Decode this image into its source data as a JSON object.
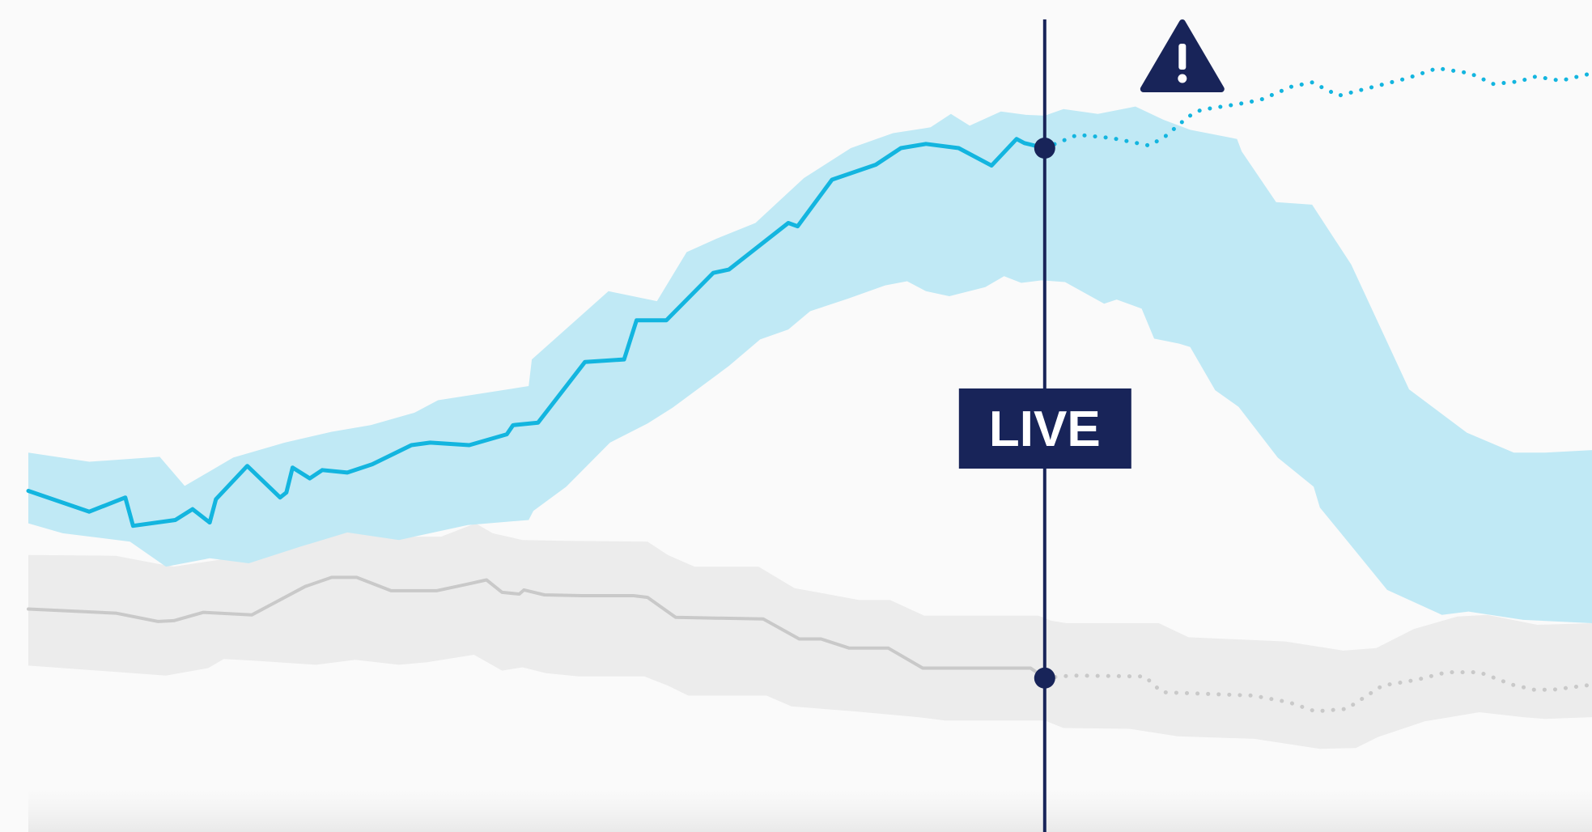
{
  "colors": {
    "accent_bar": "#005ebd",
    "primary_line": "#13b5df",
    "primary_band": "#c0e9f5",
    "secondary_line": "#c9c9c9",
    "secondary_band": "#ececec",
    "marker": "#182459",
    "background": "#fafafa"
  },
  "icons": {
    "warning": "warning-triangle-icon"
  },
  "labels": {
    "live": "LIVE"
  },
  "chart_data": {
    "type": "line",
    "title": "",
    "xlabel": "",
    "ylabel": "",
    "grid": false,
    "axes_visible": false,
    "legend": "none",
    "xlim": [
      0,
      100
    ],
    "ylim": [
      0,
      100
    ],
    "live_x": 65,
    "live_label": "LIVE",
    "warning_x": 73.8,
    "series": [
      {
        "key": "primary",
        "color": "#13b5df",
        "band_color": "#c0e9f5",
        "actual": [
          [
            0,
            41
          ],
          [
            3.9,
            38.5
          ],
          [
            6.2,
            40.2
          ],
          [
            6.7,
            36.8
          ],
          [
            9.4,
            37.5
          ],
          [
            10.5,
            38.8
          ],
          [
            11.6,
            37.2
          ],
          [
            12,
            40
          ],
          [
            14,
            44
          ],
          [
            16.1,
            40.2
          ],
          [
            16.5,
            40.8
          ],
          [
            16.9,
            43.8
          ],
          [
            18,
            42.5
          ],
          [
            18.8,
            43.5
          ],
          [
            20.4,
            43.2
          ],
          [
            22,
            44.2
          ],
          [
            24.5,
            46.5
          ],
          [
            25.7,
            46.8
          ],
          [
            28.2,
            46.5
          ],
          [
            30.6,
            47.8
          ],
          [
            31,
            48.9
          ],
          [
            32.6,
            49.2
          ],
          [
            35.6,
            56.5
          ],
          [
            38.1,
            56.8
          ],
          [
            38.9,
            61.5
          ],
          [
            40.8,
            61.5
          ],
          [
            43.8,
            67.2
          ],
          [
            44.8,
            67.6
          ],
          [
            48.6,
            73.2
          ],
          [
            49.2,
            72.8
          ],
          [
            51.4,
            78.4
          ],
          [
            54.2,
            80.2
          ],
          [
            55.8,
            82.2
          ],
          [
            57.4,
            82.7
          ],
          [
            59.5,
            82.2
          ],
          [
            61.6,
            80.1
          ],
          [
            63.2,
            83.3
          ],
          [
            63.7,
            82.8
          ],
          [
            65,
            82.2
          ]
        ],
        "upper": [
          [
            0,
            45.6
          ],
          [
            3.9,
            44.5
          ],
          [
            8.4,
            45.1
          ],
          [
            10,
            41.6
          ],
          [
            13.1,
            45
          ],
          [
            16.4,
            46.8
          ],
          [
            19.4,
            48.1
          ],
          [
            21.9,
            48.9
          ],
          [
            24.7,
            50.4
          ],
          [
            26.2,
            51.9
          ],
          [
            32,
            53.6
          ],
          [
            32.2,
            56.8
          ],
          [
            37.1,
            65
          ],
          [
            40.2,
            63.8
          ],
          [
            42.1,
            69.7
          ],
          [
            44,
            71.3
          ],
          [
            46.5,
            73.2
          ],
          [
            49.6,
            78.6
          ],
          [
            52.6,
            82.2
          ],
          [
            55.3,
            84
          ],
          [
            57.7,
            84.7
          ],
          [
            59,
            86.3
          ],
          [
            60.2,
            84.9
          ],
          [
            62.2,
            86.6
          ],
          [
            63.8,
            86.2
          ],
          [
            65,
            86.1
          ],
          [
            66.2,
            86.9
          ],
          [
            68.4,
            86.3
          ],
          [
            70.8,
            87.2
          ],
          [
            72.6,
            85.6
          ],
          [
            74.3,
            84.4
          ],
          [
            77.3,
            83.3
          ],
          [
            77.6,
            81.8
          ],
          [
            79.8,
            75.7
          ],
          [
            82.1,
            75.4
          ],
          [
            84.6,
            68.2
          ],
          [
            88.3,
            53.2
          ],
          [
            92,
            48
          ],
          [
            95,
            45.6
          ],
          [
            97,
            45.6
          ],
          [
            100,
            45.9
          ]
        ],
        "lower": [
          [
            0,
            37.1
          ],
          [
            2.2,
            35.9
          ],
          [
            6.5,
            34.9
          ],
          [
            8.8,
            31.9
          ],
          [
            11.6,
            32.9
          ],
          [
            14.1,
            32.3
          ],
          [
            17.4,
            34.3
          ],
          [
            20.4,
            36
          ],
          [
            23.7,
            35.1
          ],
          [
            28.1,
            36.9
          ],
          [
            32,
            37.5
          ],
          [
            32.3,
            38.6
          ],
          [
            34.4,
            41.5
          ],
          [
            37.2,
            46.8
          ],
          [
            39.6,
            49.1
          ],
          [
            41.2,
            51
          ],
          [
            44.8,
            56
          ],
          [
            46.8,
            59.2
          ],
          [
            48.6,
            60.4
          ],
          [
            50,
            62.6
          ],
          [
            52.4,
            64.1
          ],
          [
            54.8,
            65.7
          ],
          [
            56.2,
            66.2
          ],
          [
            57.4,
            65
          ],
          [
            58.9,
            64.4
          ],
          [
            61.2,
            65.5
          ],
          [
            62.4,
            66.8
          ],
          [
            63.5,
            66
          ],
          [
            64.8,
            66.3
          ],
          [
            66.3,
            66.1
          ],
          [
            68.8,
            63.5
          ],
          [
            69.6,
            64
          ],
          [
            71.2,
            62.9
          ],
          [
            72,
            59.3
          ],
          [
            73.6,
            58.7
          ],
          [
            74.3,
            58.3
          ],
          [
            75.9,
            53.1
          ],
          [
            77.4,
            51.1
          ],
          [
            79.9,
            45
          ],
          [
            82.2,
            41.5
          ],
          [
            82.6,
            39
          ],
          [
            84.6,
            34.4
          ],
          [
            86.9,
            29.1
          ],
          [
            90.4,
            26.1
          ],
          [
            92.1,
            26.5
          ],
          [
            95.6,
            25.5
          ],
          [
            100,
            25.1
          ]
        ],
        "forecast": [
          [
            65,
            82.2
          ],
          [
            67.1,
            83.8
          ],
          [
            69.3,
            83.4
          ],
          [
            71.7,
            82.5
          ],
          [
            72.7,
            83.6
          ],
          [
            74.2,
            86
          ],
          [
            75,
            86.8
          ],
          [
            77.4,
            87.5
          ],
          [
            78.8,
            88
          ],
          [
            80.8,
            89.6
          ],
          [
            82.1,
            90.1
          ],
          [
            83.8,
            88.5
          ],
          [
            86.1,
            89.6
          ],
          [
            88.2,
            90.6
          ],
          [
            90.1,
            91.8
          ],
          [
            92.2,
            91.2
          ],
          [
            93.7,
            89.9
          ],
          [
            95.3,
            90.2
          ],
          [
            96.4,
            90.8
          ],
          [
            98,
            90.3
          ],
          [
            100,
            91.2
          ]
        ]
      },
      {
        "key": "secondary",
        "color": "#c9c9c9",
        "band_color": "#ececec",
        "actual": [
          [
            0,
            26.8
          ],
          [
            5.6,
            26.3
          ],
          [
            8.3,
            25.3
          ],
          [
            9.3,
            25.4
          ],
          [
            11.2,
            26.4
          ],
          [
            14.3,
            26.1
          ],
          [
            15.3,
            27.1
          ],
          [
            17.7,
            29.5
          ],
          [
            19.4,
            30.6
          ],
          [
            21,
            30.6
          ],
          [
            23.2,
            29
          ],
          [
            26.1,
            29
          ],
          [
            28.1,
            29.8
          ],
          [
            29.3,
            30.3
          ],
          [
            30.3,
            28.8
          ],
          [
            31.4,
            28.6
          ],
          [
            31.7,
            29.1
          ],
          [
            33,
            28.5
          ],
          [
            35.4,
            28.4
          ],
          [
            38.7,
            28.4
          ],
          [
            39.6,
            28.2
          ],
          [
            41.4,
            25.8
          ],
          [
            47,
            25.6
          ],
          [
            49.3,
            23.2
          ],
          [
            50.7,
            23.2
          ],
          [
            52.5,
            22.1
          ],
          [
            55,
            22.1
          ],
          [
            57.2,
            19.7
          ],
          [
            64.1,
            19.7
          ],
          [
            65,
            18.5
          ]
        ],
        "upper": [
          [
            0,
            33.3
          ],
          [
            5.6,
            33.2
          ],
          [
            8.1,
            32.3
          ],
          [
            9.3,
            31.9
          ],
          [
            13.2,
            33
          ],
          [
            14.5,
            33
          ],
          [
            16.6,
            35
          ],
          [
            18.5,
            36.5
          ],
          [
            21.4,
            36.3
          ],
          [
            22.7,
            35.5
          ],
          [
            26.4,
            35.5
          ],
          [
            28.6,
            37.1
          ],
          [
            29.7,
            35.9
          ],
          [
            31.6,
            35.1
          ],
          [
            34.3,
            35
          ],
          [
            39.6,
            34.9
          ],
          [
            40.9,
            33.3
          ],
          [
            42.6,
            31.9
          ],
          [
            46.7,
            31.9
          ],
          [
            49,
            29.3
          ],
          [
            50.8,
            28.7
          ],
          [
            53.1,
            27.9
          ],
          [
            55.1,
            27.9
          ],
          [
            57.3,
            26
          ],
          [
            64.6,
            26
          ],
          [
            65.4,
            25.4
          ],
          [
            66.4,
            25.1
          ],
          [
            72.3,
            25.1
          ],
          [
            74.2,
            23.4
          ],
          [
            80.4,
            22.9
          ],
          [
            84.1,
            21.8
          ],
          [
            86.2,
            22.1
          ],
          [
            88.6,
            24.4
          ],
          [
            91.4,
            25.9
          ],
          [
            93.3,
            26.1
          ],
          [
            96.5,
            24.9
          ],
          [
            100,
            25.1
          ]
        ],
        "lower": [
          [
            0,
            20
          ],
          [
            8.8,
            18.8
          ],
          [
            11.5,
            19.7
          ],
          [
            12.5,
            20.8
          ],
          [
            14.4,
            20.6
          ],
          [
            18.4,
            20.1
          ],
          [
            20.9,
            20.7
          ],
          [
            23.7,
            20.1
          ],
          [
            25.5,
            20.4
          ],
          [
            28.5,
            21.3
          ],
          [
            30.3,
            19.4
          ],
          [
            31.6,
            19.8
          ],
          [
            33.1,
            19.1
          ],
          [
            35.2,
            18.7
          ],
          [
            39.4,
            18.7
          ],
          [
            40.9,
            17.6
          ],
          [
            42.2,
            16.4
          ],
          [
            47.2,
            16.4
          ],
          [
            48.8,
            15.1
          ],
          [
            52.8,
            14.5
          ],
          [
            56.9,
            13.8
          ],
          [
            58.6,
            13.4
          ],
          [
            65,
            13.4
          ],
          [
            66.2,
            12.5
          ],
          [
            70.4,
            12.4
          ],
          [
            73.5,
            11.5
          ],
          [
            78.4,
            11.2
          ],
          [
            82.6,
            10
          ],
          [
            84.9,
            10.1
          ],
          [
            86.3,
            11.4
          ],
          [
            89.3,
            13.3
          ],
          [
            92.8,
            14.4
          ],
          [
            95.6,
            13.8
          ],
          [
            97,
            13.6
          ],
          [
            100,
            13.8
          ]
        ],
        "forecast": [
          [
            65,
            18.5
          ],
          [
            66.7,
            18.8
          ],
          [
            71.4,
            18.7
          ],
          [
            72.5,
            16.8
          ],
          [
            78.3,
            16.4
          ],
          [
            80.6,
            15.6
          ],
          [
            82.3,
            14.5
          ],
          [
            84.3,
            14.8
          ],
          [
            86.6,
            17.6
          ],
          [
            88.8,
            18.3
          ],
          [
            90.7,
            19.2
          ],
          [
            92.8,
            19.2
          ],
          [
            94.9,
            17.7
          ],
          [
            96.3,
            17.1
          ],
          [
            97.5,
            17.1
          ],
          [
            100,
            17.7
          ]
        ]
      }
    ]
  }
}
